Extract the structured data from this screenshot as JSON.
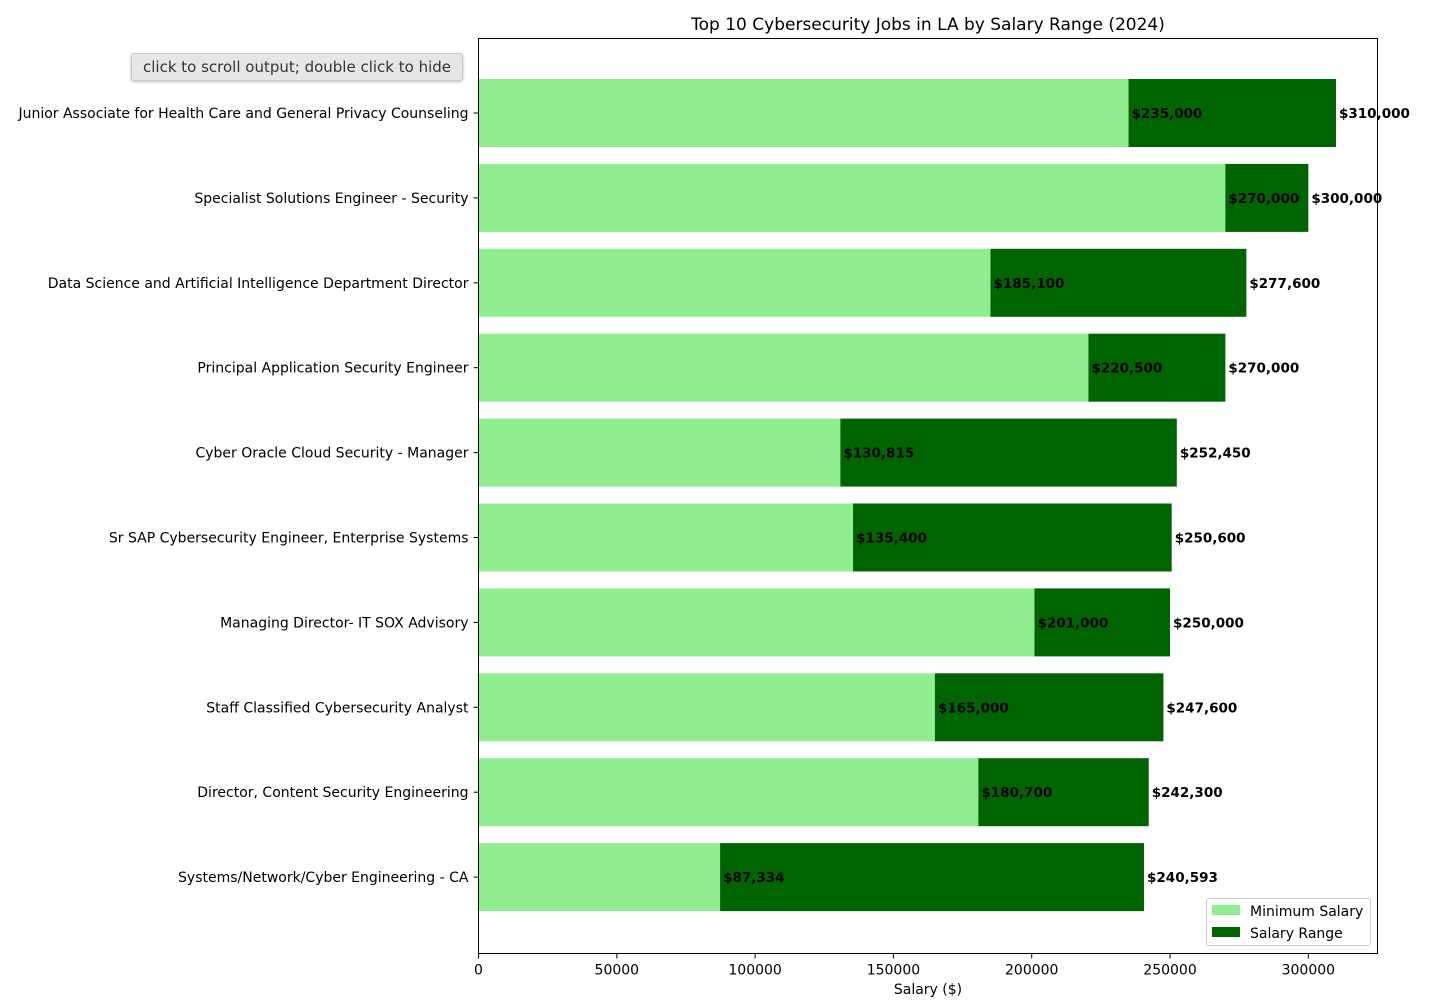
{
  "output_prompt": {
    "text": "click to scroll output; double click to hide"
  },
  "chart_data": {
    "type": "bar",
    "orientation": "horizontal",
    "stacked": true,
    "title": "Top 10 Cybersecurity Jobs in LA by Salary Range (2024)",
    "xlabel": "Salary ($)",
    "ylabel": "",
    "xlim": [
      0,
      325000
    ],
    "xticks": [
      0,
      50000,
      100000,
      150000,
      200000,
      250000,
      300000
    ],
    "xtick_labels": [
      "0",
      "50000",
      "100000",
      "150000",
      "200000",
      "250000",
      "300000"
    ],
    "grid": false,
    "legend_position": "lower-right",
    "categories": [
      "Junior Associate for Health Care and General Privacy Counseling",
      "Specialist Solutions Engineer - Security",
      "Data Science and Artificial Intelligence Department Director",
      "Principal Application Security Engineer",
      "Cyber Oracle Cloud Security - Manager",
      "Sr SAP Cybersecurity Engineer, Enterprise Systems",
      "Managing Director- IT SOX Advisory",
      "Staff Classified Cybersecurity Analyst",
      "Director, Content Security Engineering",
      "Systems/Network/Cyber Engineering - CA"
    ],
    "series": [
      {
        "name": "Minimum Salary",
        "color": "#90ee90",
        "values": [
          235000,
          270000,
          185100,
          220500,
          130815,
          135400,
          201000,
          165000,
          180700,
          87334
        ]
      },
      {
        "name": "Salary Range",
        "color": "#006400",
        "values": [
          75000,
          30000,
          92500,
          49500,
          121635,
          115200,
          49000,
          82600,
          61600,
          153259
        ]
      }
    ],
    "max_salary": [
      310000,
      300000,
      277600,
      270000,
      252450,
      250600,
      250000,
      247600,
      242300,
      240593
    ],
    "min_labels": [
      "$235,000",
      "$270,000",
      "$185,100",
      "$220,500",
      "$130,815",
      "$135,400",
      "$201,000",
      "$165,000",
      "$180,700",
      "$87,334"
    ],
    "max_labels": [
      "$310,000",
      "$300,000",
      "$277,600",
      "$270,000",
      "$252,450",
      "$250,600",
      "$250,000",
      "$247,600",
      "$242,300",
      "$240,593"
    ]
  }
}
